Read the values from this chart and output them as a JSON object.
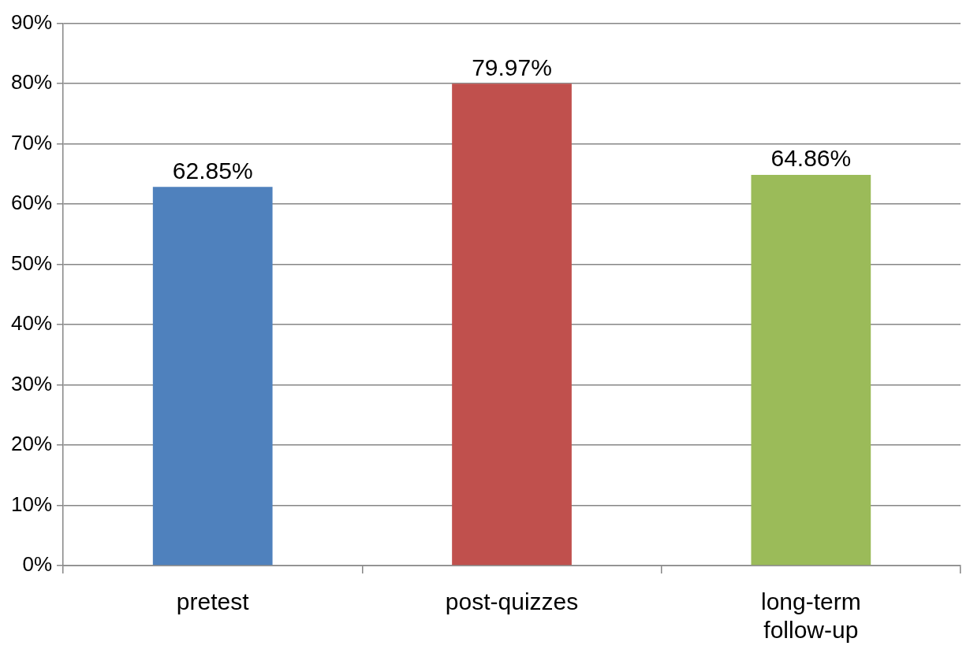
{
  "chart_data": {
    "type": "bar",
    "categories": [
      "pretest",
      "post-quizzes",
      "long-term follow-up"
    ],
    "values": [
      62.85,
      79.97,
      64.86
    ],
    "colors": [
      "#4f81bd",
      "#c0504d",
      "#9bbb59"
    ],
    "value_labels": [
      "62.85%",
      "79.97%",
      "64.86%"
    ],
    "ylim": [
      0,
      90
    ],
    "yticks": [
      {
        "value": 0,
        "label": "0%"
      },
      {
        "value": 10,
        "label": "10%"
      },
      {
        "value": 20,
        "label": "20%"
      },
      {
        "value": 30,
        "label": "30%"
      },
      {
        "value": 40,
        "label": "40%"
      },
      {
        "value": 50,
        "label": "50%"
      },
      {
        "value": 60,
        "label": "60%"
      },
      {
        "value": 70,
        "label": "70%"
      },
      {
        "value": 80,
        "label": "80%"
      },
      {
        "value": 90,
        "label": "90%"
      }
    ],
    "grid": "y",
    "legend": false
  }
}
